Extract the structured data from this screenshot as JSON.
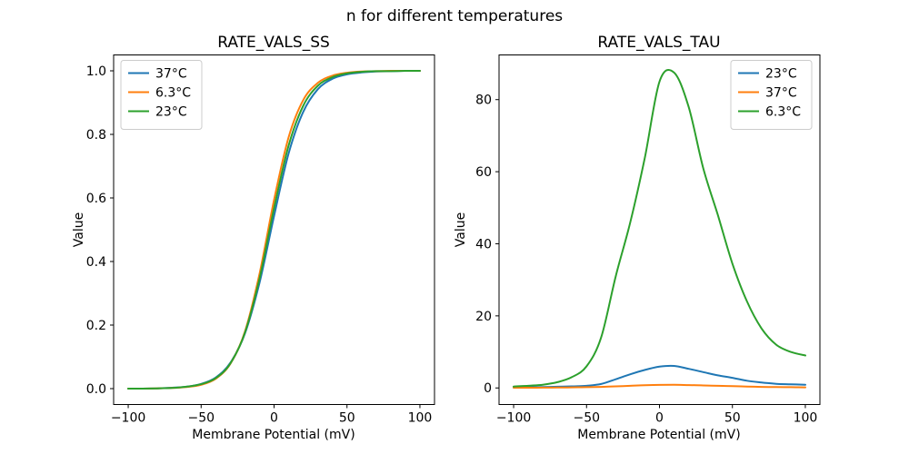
{
  "figure": {
    "suptitle": "n for different temperatures",
    "background": "#ffffff"
  },
  "colors": {
    "blue": "#1f77b4",
    "orange": "#ff7f0e",
    "green": "#2ca02c",
    "axis": "#000000",
    "legend_border": "#cccccc"
  },
  "chart_data": [
    {
      "type": "line",
      "title": "RATE_VALS_SS",
      "xlabel": "Membrane Potential (mV)",
      "ylabel": "Value",
      "grid": false,
      "xlim": [
        -110,
        110
      ],
      "ylim": [
        -0.05,
        1.05
      ],
      "xticks": [
        -100,
        -50,
        0,
        50,
        100
      ],
      "xticklabels": [
        "−100",
        "−50",
        "0",
        "50",
        "100"
      ],
      "yticks": [
        0.0,
        0.2,
        0.4,
        0.6,
        0.8,
        1.0
      ],
      "yticklabels": [
        "0.0",
        "0.2",
        "0.4",
        "0.6",
        "0.8",
        "1.0"
      ],
      "legend_loc": "upper left",
      "x": [
        -100,
        -90,
        -80,
        -70,
        -60,
        -50,
        -40,
        -30,
        -20,
        -10,
        0,
        10,
        20,
        30,
        40,
        50,
        60,
        70,
        80,
        90,
        100
      ],
      "series": [
        {
          "name": "37°C",
          "color": "#1f77b4",
          "values": [
            0,
            0,
            0.001,
            0.003,
            0.006,
            0.015,
            0.035,
            0.081,
            0.173,
            0.333,
            0.543,
            0.74,
            0.871,
            0.942,
            0.975,
            0.989,
            0.995,
            0.998,
            0.999,
            1,
            1
          ]
        },
        {
          "name": "6.3°C",
          "color": "#ff7f0e",
          "values": [
            0,
            0,
            0.001,
            0.002,
            0.005,
            0.012,
            0.031,
            0.078,
            0.179,
            0.361,
            0.594,
            0.791,
            0.908,
            0.962,
            0.985,
            0.994,
            0.998,
            0.999,
            1,
            1,
            1
          ]
        },
        {
          "name": "23°C",
          "color": "#2ca02c",
          "values": [
            0,
            0,
            0.001,
            0.002,
            0.006,
            0.014,
            0.033,
            0.079,
            0.176,
            0.346,
            0.568,
            0.765,
            0.89,
            0.953,
            0.98,
            0.992,
            0.997,
            0.999,
            0.999,
            1,
            1
          ]
        }
      ]
    },
    {
      "type": "line",
      "title": "RATE_VALS_TAU",
      "xlabel": "Membrane Potential (mV)",
      "ylabel": "Value",
      "grid": false,
      "xlim": [
        -110,
        110
      ],
      "ylim": [
        -4.6,
        92.4
      ],
      "xticks": [
        -100,
        -50,
        0,
        50,
        100
      ],
      "xticklabels": [
        "−100",
        "−50",
        "0",
        "50",
        "100"
      ],
      "yticks": [
        0,
        20,
        40,
        60,
        80
      ],
      "yticklabels": [
        "0",
        "20",
        "40",
        "60",
        "80"
      ],
      "legend_loc": "upper right",
      "x": [
        -100,
        -90,
        -80,
        -70,
        -60,
        -50,
        -40,
        -30,
        -20,
        -10,
        0,
        10,
        20,
        30,
        40,
        50,
        60,
        70,
        80,
        90,
        100
      ],
      "series": [
        {
          "name": "23°C",
          "color": "#1f77b4",
          "values": [
            0.15,
            0.2,
            0.25,
            0.35,
            0.45,
            0.6,
            1.1,
            2.4,
            3.8,
            5.0,
            5.9,
            6.1,
            5.3,
            4.4,
            3.5,
            2.8,
            2.0,
            1.5,
            1.15,
            1.0,
            0.9
          ]
        },
        {
          "name": "37°C",
          "color": "#ff7f0e",
          "values": [
            0.05,
            0.06,
            0.08,
            0.1,
            0.15,
            0.2,
            0.3,
            0.45,
            0.6,
            0.75,
            0.85,
            0.87,
            0.8,
            0.7,
            0.6,
            0.5,
            0.4,
            0.3,
            0.25,
            0.2,
            0.17
          ]
        },
        {
          "name": "6.3°C",
          "color": "#2ca02c",
          "values": [
            0.4,
            0.6,
            0.9,
            1.6,
            3.0,
            6.0,
            14,
            31,
            46,
            64,
            85,
            87.5,
            78,
            61,
            48,
            34.5,
            24,
            16.5,
            12,
            10,
            9
          ]
        }
      ]
    }
  ]
}
